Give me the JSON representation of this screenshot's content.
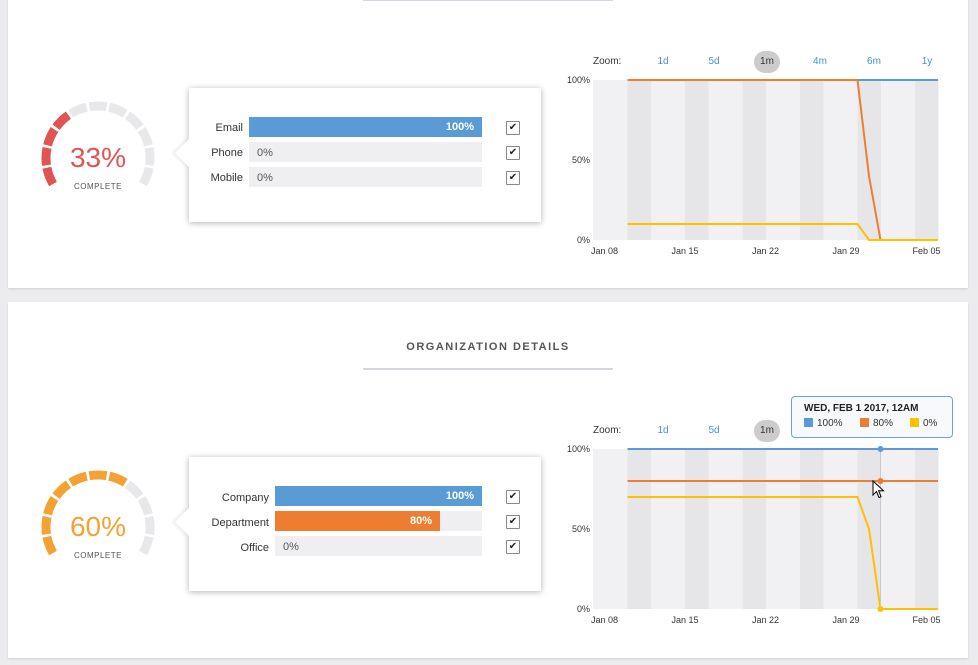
{
  "colors": {
    "blue": "#5b9bd5",
    "orange": "#ed7d31",
    "yellow": "#ffc000",
    "red": "#e05454",
    "gauge_orange": "#f4a234"
  },
  "sections": [
    {
      "title": "",
      "gauge": {
        "percent": "33%",
        "label": "COMPLETE",
        "value": 0.33
      },
      "rows": [
        {
          "label": "Email",
          "value": 1.0,
          "text": "100%",
          "color": "#5b9bd5"
        },
        {
          "label": "Phone",
          "value": 0,
          "text": "0%",
          "color": "#5b9bd5"
        },
        {
          "label": "Mobile",
          "value": 0,
          "text": "0%",
          "color": "#5b9bd5"
        }
      ],
      "checkbox": "✔",
      "zoom": {
        "label": "Zoom:",
        "options": [
          "1d",
          "5d",
          "1m",
          "4m",
          "6m",
          "1y"
        ],
        "selected": "1m"
      }
    },
    {
      "title": "ORGANIZATION DETAILS",
      "gauge": {
        "percent": "60%",
        "label": "COMPLETE",
        "value": 0.6
      },
      "rows": [
        {
          "label": "Company",
          "value": 1.0,
          "text": "100%",
          "color": "#5b9bd5"
        },
        {
          "label": "Department",
          "value": 0.8,
          "text": "80%",
          "color": "#ed7d31"
        },
        {
          "label": "Office",
          "value": 0,
          "text": "0%",
          "color": "#5b9bd5"
        }
      ],
      "checkbox": "✔",
      "zoom": {
        "label": "Zoom:",
        "options": [
          "1d",
          "5d",
          "1m"
        ],
        "selected": "1m"
      },
      "tooltip": {
        "date": "WED, FEB 1 2017, 12AM",
        "items": [
          "100%",
          "80%",
          "0%"
        ]
      }
    }
  ],
  "chart_data": [
    {
      "type": "line",
      "x_ticks": [
        "Jan 08",
        "Jan 15",
        "Jan 22",
        "Jan 29",
        "Feb 05"
      ],
      "y_ticks": [
        "0%",
        "50%",
        "100%"
      ],
      "ylim": [
        0,
        100
      ],
      "xlim": [
        "2017-01-07",
        "2017-02-06"
      ],
      "series": [
        {
          "color": "#5b9bd5",
          "points": [
            [
              "2017-01-10",
              100
            ],
            [
              "2017-02-06",
              100
            ]
          ]
        },
        {
          "color": "#ed7d31",
          "points": [
            [
              "2017-01-10",
              100
            ],
            [
              "2017-01-30",
              100
            ],
            [
              "2017-01-31",
              40
            ],
            [
              "2017-02-01",
              0
            ],
            [
              "2017-02-06",
              0
            ]
          ]
        },
        {
          "color": "#ffc000",
          "points": [
            [
              "2017-01-10",
              10
            ],
            [
              "2017-01-30",
              10
            ],
            [
              "2017-01-31",
              0
            ],
            [
              "2017-02-06",
              0
            ]
          ]
        }
      ]
    },
    {
      "type": "line",
      "x_ticks": [
        "Jan 08",
        "Jan 15",
        "Jan 22",
        "Jan 29",
        "Feb 05"
      ],
      "y_ticks": [
        "0%",
        "50%",
        "100%"
      ],
      "ylim": [
        0,
        100
      ],
      "xlim": [
        "2017-01-07",
        "2017-02-06"
      ],
      "series": [
        {
          "color": "#5b9bd5",
          "points": [
            [
              "2017-01-10",
              100
            ],
            [
              "2017-02-06",
              100
            ]
          ]
        },
        {
          "color": "#ed7d31",
          "points": [
            [
              "2017-01-10",
              80
            ],
            [
              "2017-02-06",
              80
            ]
          ]
        },
        {
          "color": "#ffc000",
          "points": [
            [
              "2017-01-10",
              70
            ],
            [
              "2017-01-30",
              70
            ],
            [
              "2017-01-31",
              50
            ],
            [
              "2017-02-01",
              0
            ],
            [
              "2017-02-06",
              0
            ]
          ]
        }
      ]
    }
  ]
}
